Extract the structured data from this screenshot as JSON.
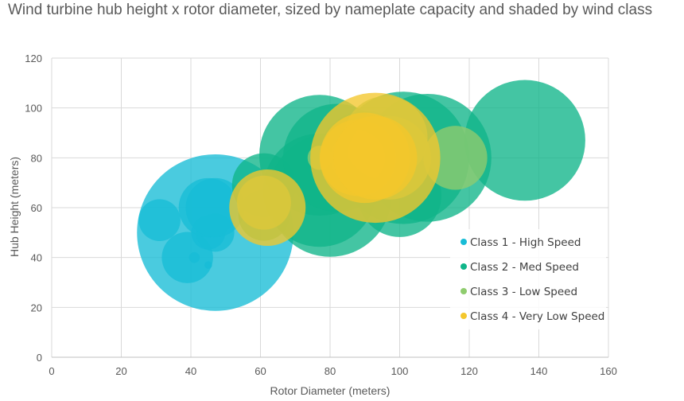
{
  "chart_data": {
    "type": "scatter",
    "subtype": "bubble",
    "title": "Wind turbine hub height x rotor diameter, sized by nameplate capacity and shaded by wind class",
    "xlabel": "Rotor Diameter (meters)",
    "ylabel": "Hub Height (meters)",
    "xlim": [
      0,
      160
    ],
    "ylim": [
      0,
      120
    ],
    "xticks": [
      0,
      20,
      40,
      60,
      80,
      100,
      120,
      140,
      160
    ],
    "yticks": [
      0,
      20,
      40,
      60,
      80,
      100,
      120
    ],
    "grid": true,
    "legend_position": "bottom-right",
    "series": [
      {
        "name": "Class 1 - High Speed",
        "color": "#17bcd6",
        "points": [
          {
            "x": 31,
            "y": 55,
            "size": 0.3
          },
          {
            "x": 39,
            "y": 40,
            "size": 0.45
          },
          {
            "x": 41,
            "y": 40,
            "size": 0.02
          },
          {
            "x": 45,
            "y": 37,
            "size": 0.01
          },
          {
            "x": 45,
            "y": 50,
            "size": 0.2
          },
          {
            "x": 47,
            "y": 50,
            "size": 4.2
          },
          {
            "x": 47,
            "y": 50,
            "size": 0.25
          },
          {
            "x": 45,
            "y": 60,
            "size": 0.6
          },
          {
            "x": 47,
            "y": 60,
            "size": 0.6
          }
        ]
      },
      {
        "name": "Class 2 - Med Speed",
        "color": "#0fb589",
        "points": [
          {
            "x": 61,
            "y": 69,
            "size": 0.7
          },
          {
            "x": 61,
            "y": 57,
            "size": 0.45
          },
          {
            "x": 77,
            "y": 81,
            "size": 2.5
          },
          {
            "x": 77,
            "y": 67,
            "size": 2.2
          },
          {
            "x": 80,
            "y": 65,
            "size": 2.6
          },
          {
            "x": 82,
            "y": 80,
            "size": 2.0
          },
          {
            "x": 90,
            "y": 80,
            "size": 1.5
          },
          {
            "x": 100,
            "y": 65,
            "size": 1.2
          },
          {
            "x": 101,
            "y": 80,
            "size": 3.0
          },
          {
            "x": 108,
            "y": 80,
            "size": 2.8
          },
          {
            "x": 136,
            "y": 87,
            "size": 2.5
          }
        ]
      },
      {
        "name": "Class 3 - Low Speed",
        "color": "#8fcc6e",
        "points": [
          {
            "x": 61,
            "y": 62,
            "size": 0.5
          },
          {
            "x": 77,
            "y": 80,
            "size": 0.1
          },
          {
            "x": 88,
            "y": 80,
            "size": 0.5
          },
          {
            "x": 96,
            "y": 88,
            "size": 1.2
          },
          {
            "x": 97,
            "y": 80,
            "size": 1.2
          },
          {
            "x": 116,
            "y": 80,
            "size": 0.7
          }
        ]
      },
      {
        "name": "Class 4 - Very Low Speed",
        "color": "#f4c72c",
        "points": [
          {
            "x": 62,
            "y": 60,
            "size": 1.0
          },
          {
            "x": 88,
            "y": 80,
            "size": 1.0
          },
          {
            "x": 90,
            "y": 80,
            "size": 1.4
          },
          {
            "x": 93,
            "y": 80,
            "size": 2.9
          },
          {
            "x": 93,
            "y": 80,
            "size": 1.2
          }
        ]
      }
    ]
  }
}
